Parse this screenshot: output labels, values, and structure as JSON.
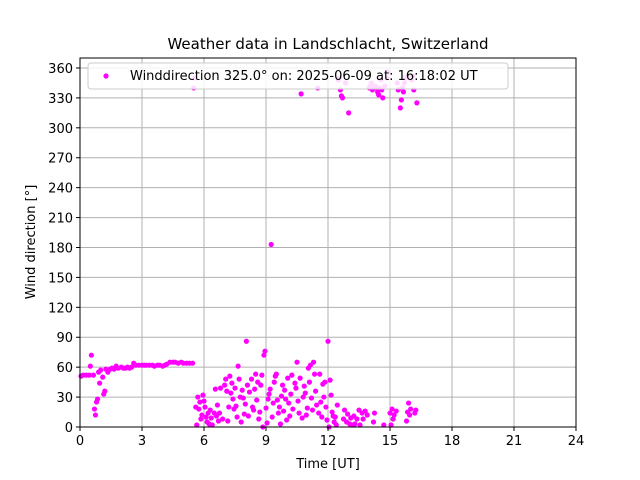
{
  "chart_data": {
    "type": "scatter",
    "title": "Weather data in Landschlacht, Switzerland",
    "xlabel": "Time [UT]",
    "ylabel": "Wind direction [°]",
    "xlim": [
      0,
      24
    ],
    "ylim": [
      0,
      370
    ],
    "xticks": [
      "0",
      "3",
      "6",
      "9",
      "12",
      "15",
      "18",
      "21",
      "24"
    ],
    "yticks": [
      "0",
      "30",
      "60",
      "90",
      "120",
      "150",
      "180",
      "210",
      "240",
      "270",
      "300",
      "330",
      "360"
    ],
    "grid": true,
    "legend_position": "top",
    "series": [
      {
        "name": "Winddirection 325.0° on: 2025-06-09 at: 16:18:02 UT",
        "color": "#ff00ff",
        "points": [
          [
            0.05,
            51
          ],
          [
            0.15,
            52
          ],
          [
            0.3,
            52
          ],
          [
            0.45,
            52
          ],
          [
            0.5,
            61
          ],
          [
            0.55,
            72
          ],
          [
            0.65,
            52
          ],
          [
            0.7,
            18
          ],
          [
            0.75,
            12
          ],
          [
            0.8,
            25
          ],
          [
            0.85,
            28
          ],
          [
            0.9,
            55
          ],
          [
            0.95,
            44
          ],
          [
            1.0,
            57
          ],
          [
            1.1,
            50
          ],
          [
            1.15,
            33
          ],
          [
            1.2,
            36
          ],
          [
            1.25,
            58
          ],
          [
            1.35,
            55
          ],
          [
            1.45,
            58
          ],
          [
            1.55,
            59
          ],
          [
            1.65,
            58
          ],
          [
            1.75,
            61
          ],
          [
            1.85,
            59
          ],
          [
            2.0,
            60
          ],
          [
            2.1,
            59
          ],
          [
            2.2,
            59
          ],
          [
            2.3,
            60
          ],
          [
            2.4,
            59
          ],
          [
            2.5,
            60
          ],
          [
            2.6,
            64
          ],
          [
            2.7,
            62
          ],
          [
            2.85,
            62
          ],
          [
            3.0,
            62
          ],
          [
            3.1,
            62
          ],
          [
            3.2,
            62
          ],
          [
            3.35,
            62
          ],
          [
            3.5,
            62
          ],
          [
            3.6,
            61
          ],
          [
            3.75,
            62
          ],
          [
            3.85,
            62
          ],
          [
            4.0,
            61
          ],
          [
            4.1,
            62
          ],
          [
            4.2,
            63
          ],
          [
            4.35,
            65
          ],
          [
            4.5,
            65
          ],
          [
            4.6,
            65
          ],
          [
            4.75,
            64
          ],
          [
            4.9,
            65
          ],
          [
            5.0,
            64
          ],
          [
            5.15,
            64
          ],
          [
            5.3,
            64
          ],
          [
            5.45,
            64
          ],
          [
            5.5,
            340
          ],
          [
            5.55,
            350
          ],
          [
            5.6,
            20
          ],
          [
            5.65,
            2
          ],
          [
            5.7,
            30
          ],
          [
            5.75,
            18
          ],
          [
            5.8,
            25
          ],
          [
            5.85,
            8
          ],
          [
            5.9,
            12
          ],
          [
            5.95,
            32
          ],
          [
            6.0,
            26
          ],
          [
            6.05,
            20
          ],
          [
            6.1,
            10
          ],
          [
            6.15,
            5
          ],
          [
            6.2,
            14
          ],
          [
            6.25,
            3
          ],
          [
            6.3,
            17
          ],
          [
            6.35,
            9
          ],
          [
            6.4,
            2
          ],
          [
            6.5,
            14
          ],
          [
            6.55,
            38
          ],
          [
            6.6,
            11
          ],
          [
            6.65,
            22
          ],
          [
            6.7,
            6
          ],
          [
            6.75,
            14
          ],
          [
            6.8,
            39
          ],
          [
            6.9,
            8
          ],
          [
            7.0,
            42
          ],
          [
            7.05,
            48
          ],
          [
            7.1,
            36
          ],
          [
            7.15,
            6
          ],
          [
            7.2,
            20
          ],
          [
            7.25,
            51
          ],
          [
            7.3,
            34
          ],
          [
            7.35,
            44
          ],
          [
            7.4,
            28
          ],
          [
            7.45,
            18
          ],
          [
            7.5,
            39
          ],
          [
            7.55,
            21
          ],
          [
            7.6,
            10
          ],
          [
            7.65,
            61
          ],
          [
            7.7,
            48
          ],
          [
            7.75,
            30
          ],
          [
            7.8,
            5
          ],
          [
            7.85,
            37
          ],
          [
            7.9,
            29
          ],
          [
            7.95,
            13
          ],
          [
            8.0,
            23
          ],
          [
            8.05,
            86
          ],
          [
            8.1,
            42
          ],
          [
            8.15,
            11
          ],
          [
            8.2,
            35
          ],
          [
            8.3,
            48
          ],
          [
            8.35,
            20
          ],
          [
            8.4,
            17
          ],
          [
            8.45,
            38
          ],
          [
            8.5,
            53
          ],
          [
            8.55,
            27
          ],
          [
            8.6,
            45
          ],
          [
            8.65,
            8
          ],
          [
            8.7,
            15
          ],
          [
            8.75,
            42
          ],
          [
            8.8,
            52
          ],
          [
            8.85,
            0
          ],
          [
            8.9,
            72
          ],
          [
            8.95,
            76
          ],
          [
            9.0,
            19
          ],
          [
            9.05,
            4
          ],
          [
            9.1,
            28
          ],
          [
            9.15,
            33
          ],
          [
            9.2,
            38
          ],
          [
            9.25,
            183
          ],
          [
            9.3,
            10
          ],
          [
            9.35,
            24
          ],
          [
            9.4,
            45
          ],
          [
            9.45,
            51
          ],
          [
            9.5,
            53
          ],
          [
            9.55,
            27
          ],
          [
            9.6,
            14
          ],
          [
            9.65,
            20
          ],
          [
            9.7,
            3
          ],
          [
            9.75,
            31
          ],
          [
            9.8,
            42
          ],
          [
            9.85,
            16
          ],
          [
            9.9,
            37
          ],
          [
            9.95,
            28
          ],
          [
            10.0,
            7
          ],
          [
            10.05,
            49
          ],
          [
            10.1,
            24
          ],
          [
            10.15,
            11
          ],
          [
            10.2,
            33
          ],
          [
            10.25,
            52
          ],
          [
            10.3,
            18
          ],
          [
            10.4,
            44
          ],
          [
            10.45,
            39
          ],
          [
            10.5,
            65
          ],
          [
            10.55,
            26
          ],
          [
            10.6,
            14
          ],
          [
            10.65,
            49
          ],
          [
            10.7,
            334
          ],
          [
            10.75,
            9
          ],
          [
            10.8,
            30
          ],
          [
            10.85,
            41
          ],
          [
            10.9,
            34
          ],
          [
            10.95,
            12
          ],
          [
            11.0,
            19
          ],
          [
            11.05,
            59
          ],
          [
            11.1,
            45
          ],
          [
            11.15,
            62
          ],
          [
            11.2,
            29
          ],
          [
            11.25,
            17
          ],
          [
            11.3,
            65
          ],
          [
            11.35,
            53
          ],
          [
            11.4,
            36
          ],
          [
            11.45,
            22
          ],
          [
            11.5,
            340
          ],
          [
            11.55,
            14
          ],
          [
            11.6,
            53
          ],
          [
            11.65,
            25
          ],
          [
            11.7,
            10
          ],
          [
            11.75,
            43
          ],
          [
            11.8,
            30
          ],
          [
            11.85,
            45
          ],
          [
            11.9,
            20
          ],
          [
            11.95,
            7
          ],
          [
            12.0,
            86
          ],
          [
            12.05,
            0
          ],
          [
            12.1,
            47
          ],
          [
            12.15,
            32
          ],
          [
            12.2,
            15
          ],
          [
            12.25,
            11
          ],
          [
            12.3,
            5
          ],
          [
            12.35,
            10
          ],
          [
            12.4,
            2
          ],
          [
            12.45,
            22
          ],
          [
            12.5,
            348
          ],
          [
            12.55,
            350
          ],
          [
            12.6,
            338
          ],
          [
            12.65,
            332
          ],
          [
            12.7,
            330
          ],
          [
            12.75,
            8
          ],
          [
            12.8,
            17
          ],
          [
            12.85,
            345
          ],
          [
            12.9,
            5
          ],
          [
            12.95,
            13
          ],
          [
            13.0,
            315
          ],
          [
            13.05,
            3
          ],
          [
            13.1,
            9
          ],
          [
            13.2,
            2
          ],
          [
            13.25,
            11
          ],
          [
            13.3,
            3
          ],
          [
            13.4,
            8
          ],
          [
            13.5,
            17
          ],
          [
            13.55,
            2
          ],
          [
            13.65,
            14
          ],
          [
            13.7,
            8
          ],
          [
            13.8,
            16
          ],
          [
            13.9,
            12
          ],
          [
            14.0,
            340
          ],
          [
            14.05,
            342
          ],
          [
            14.1,
            345
          ],
          [
            14.15,
            338
          ],
          [
            14.2,
            5
          ],
          [
            14.25,
            14
          ],
          [
            14.3,
            342
          ],
          [
            14.35,
            340
          ],
          [
            14.4,
            336
          ],
          [
            14.45,
            333
          ],
          [
            14.5,
            340
          ],
          [
            14.55,
            348
          ],
          [
            14.6,
            338
          ],
          [
            14.65,
            330
          ],
          [
            14.7,
            2
          ],
          [
            14.75,
            342
          ],
          [
            14.85,
            350
          ],
          [
            14.9,
            356
          ],
          [
            15.0,
            14
          ],
          [
            15.05,
            2
          ],
          [
            15.1,
            18
          ],
          [
            15.15,
            8
          ],
          [
            15.2,
            12
          ],
          [
            15.3,
            16
          ],
          [
            15.35,
            345
          ],
          [
            15.4,
            338
          ],
          [
            15.5,
            320
          ],
          [
            15.55,
            328
          ],
          [
            15.6,
            340
          ],
          [
            15.65,
            336
          ],
          [
            15.7,
            345
          ],
          [
            15.75,
            350
          ],
          [
            15.8,
            6
          ],
          [
            15.85,
            15
          ],
          [
            15.9,
            24
          ],
          [
            15.95,
            12
          ],
          [
            16.0,
            18
          ],
          [
            16.05,
            348
          ],
          [
            16.1,
            352
          ],
          [
            16.15,
            338
          ],
          [
            16.2,
            14
          ],
          [
            16.25,
            17
          ],
          [
            16.3,
            325
          ]
        ]
      }
    ]
  }
}
